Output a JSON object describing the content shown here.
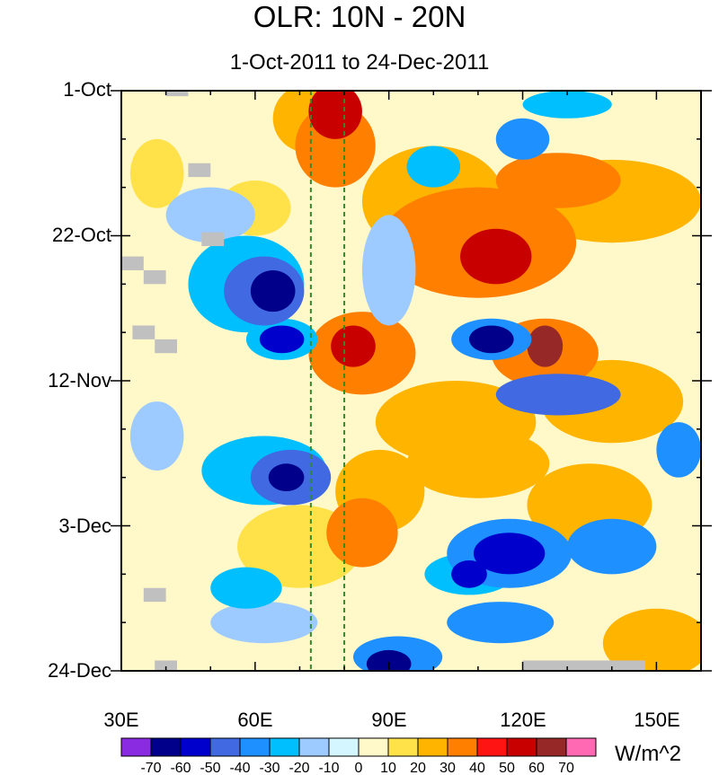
{
  "chart_data": {
    "type": "heatmap",
    "title": "OLR: 10N - 20N",
    "subtitle": "1-Oct-2011 to 24-Dec-2011",
    "x_tick_labels": [
      "30E",
      "60E",
      "90E",
      "120E",
      "150E"
    ],
    "x_ticks": [
      30,
      60,
      90,
      120,
      150
    ],
    "xlim": [
      30,
      160
    ],
    "y_tick_labels": [
      "1-Oct",
      "22-Oct",
      "12-Nov",
      "3-Dec",
      "24-Dec"
    ],
    "y_ticks": [
      0,
      21,
      42,
      63,
      84
    ],
    "ylim": [
      0,
      84
    ],
    "y_axis_direction": "time increasing downward",
    "reference_lines_lon": [
      72.5,
      80
    ],
    "reference_line_color": "#2e8b2e",
    "colorbar": {
      "units": "W/m^2",
      "levels": [
        -70,
        -60,
        -50,
        -40,
        -30,
        -20,
        -10,
        0,
        10,
        20,
        30,
        40,
        50,
        60,
        70
      ],
      "level_labels": [
        "-70",
        "-60",
        "-50",
        "-40",
        "-30",
        "-20",
        "-10",
        "0",
        "10",
        "20",
        "30",
        "40",
        "50",
        "60",
        "70"
      ],
      "colors": [
        "#8a2be2",
        "#00008b",
        "#0000cd",
        "#4169e1",
        "#1e90ff",
        "#00bfff",
        "#9ecbff",
        "#d4f6ff",
        "#fff8c8",
        "#ffe24a",
        "#ffb400",
        "#ff7f00",
        "#ff1414",
        "#c80000",
        "#962828",
        "#ff69b4"
      ]
    },
    "features": [
      {
        "lon": 78,
        "day": 3,
        "value": 55,
        "rx": 6,
        "ry": 4
      },
      {
        "lon": 78,
        "day": 8,
        "value": 35,
        "rx": 9,
        "ry": 6
      },
      {
        "lon": 72,
        "day": 4,
        "value": 25,
        "rx": 8,
        "ry": 5
      },
      {
        "lon": 114,
        "day": 24,
        "value": 55,
        "rx": 8,
        "ry": 4
      },
      {
        "lon": 110,
        "day": 22,
        "value": 32,
        "rx": 22,
        "ry": 8
      },
      {
        "lon": 140,
        "day": 16,
        "value": 25,
        "rx": 20,
        "ry": 6
      },
      {
        "lon": 128,
        "day": 13,
        "value": 30,
        "rx": 14,
        "ry": 4
      },
      {
        "lon": 100,
        "day": 16,
        "value": 20,
        "rx": 16,
        "ry": 8
      },
      {
        "lon": 82,
        "day": 37,
        "value": 55,
        "rx": 5,
        "ry": 3
      },
      {
        "lon": 84,
        "day": 38,
        "value": 32,
        "rx": 12,
        "ry": 6
      },
      {
        "lon": 125,
        "day": 37,
        "value": 60,
        "rx": 4,
        "ry": 3
      },
      {
        "lon": 125,
        "day": 38,
        "value": 30,
        "rx": 12,
        "ry": 5
      },
      {
        "lon": 105,
        "day": 48,
        "value": 25,
        "rx": 18,
        "ry": 6
      },
      {
        "lon": 140,
        "day": 45,
        "value": 20,
        "rx": 16,
        "ry": 6
      },
      {
        "lon": 88,
        "day": 58,
        "value": 25,
        "rx": 10,
        "ry": 6
      },
      {
        "lon": 84,
        "day": 64,
        "value": 32,
        "rx": 8,
        "ry": 5
      },
      {
        "lon": 70,
        "day": 66,
        "value": 15,
        "rx": 14,
        "ry": 6
      },
      {
        "lon": 110,
        "day": 54,
        "value": 22,
        "rx": 16,
        "ry": 5
      },
      {
        "lon": 135,
        "day": 60,
        "value": 22,
        "rx": 14,
        "ry": 6
      },
      {
        "lon": 150,
        "day": 80,
        "value": 20,
        "rx": 12,
        "ry": 5
      },
      {
        "lon": 60,
        "day": 17,
        "value": 15,
        "rx": 8,
        "ry": 4
      },
      {
        "lon": 38,
        "day": 12,
        "value": 12,
        "rx": 6,
        "ry": 5
      },
      {
        "lon": 64,
        "day": 29,
        "value": -70,
        "rx": 5,
        "ry": 3
      },
      {
        "lon": 62,
        "day": 29,
        "value": -45,
        "rx": 9,
        "ry": 5
      },
      {
        "lon": 58,
        "day": 28,
        "value": -22,
        "rx": 13,
        "ry": 7
      },
      {
        "lon": 66,
        "day": 36,
        "value": -55,
        "rx": 5,
        "ry": 2
      },
      {
        "lon": 66,
        "day": 36,
        "value": -30,
        "rx": 8,
        "ry": 3
      },
      {
        "lon": 67,
        "day": 56,
        "value": -70,
        "rx": 4,
        "ry": 2
      },
      {
        "lon": 68,
        "day": 56,
        "value": -42,
        "rx": 9,
        "ry": 4
      },
      {
        "lon": 62,
        "day": 55,
        "value": -22,
        "rx": 14,
        "ry": 5
      },
      {
        "lon": 113,
        "day": 36,
        "value": -62,
        "rx": 5,
        "ry": 2
      },
      {
        "lon": 113,
        "day": 36,
        "value": -38,
        "rx": 9,
        "ry": 3
      },
      {
        "lon": 128,
        "day": 44,
        "value": -45,
        "rx": 14,
        "ry": 3
      },
      {
        "lon": 100,
        "day": 11,
        "value": -30,
        "rx": 6,
        "ry": 3
      },
      {
        "lon": 120,
        "day": 7,
        "value": -35,
        "rx": 6,
        "ry": 3
      },
      {
        "lon": 130,
        "day": 2,
        "value": -25,
        "rx": 10,
        "ry": 2
      },
      {
        "lon": 117,
        "day": 67,
        "value": -55,
        "rx": 8,
        "ry": 3
      },
      {
        "lon": 117,
        "day": 67,
        "value": -35,
        "rx": 14,
        "ry": 5
      },
      {
        "lon": 108,
        "day": 70,
        "value": -60,
        "rx": 4,
        "ry": 2
      },
      {
        "lon": 108,
        "day": 70,
        "value": -30,
        "rx": 10,
        "ry": 3
      },
      {
        "lon": 90,
        "day": 83,
        "value": -65,
        "rx": 5,
        "ry": 2
      },
      {
        "lon": 92,
        "day": 82,
        "value": -35,
        "rx": 10,
        "ry": 3
      },
      {
        "lon": 115,
        "day": 77,
        "value": -40,
        "rx": 12,
        "ry": 3
      },
      {
        "lon": 58,
        "day": 72,
        "value": -30,
        "rx": 8,
        "ry": 3
      },
      {
        "lon": 62,
        "day": 77,
        "value": -20,
        "rx": 12,
        "ry": 3
      },
      {
        "lon": 155,
        "day": 52,
        "value": -40,
        "rx": 5,
        "ry": 4
      },
      {
        "lon": 140,
        "day": 66,
        "value": -35,
        "rx": 10,
        "ry": 4
      },
      {
        "lon": 50,
        "day": 18,
        "value": -15,
        "rx": 10,
        "ry": 4
      },
      {
        "lon": 90,
        "day": 26,
        "value": -15,
        "rx": 6,
        "ry": 8
      },
      {
        "lon": 38,
        "day": 50,
        "value": -15,
        "rx": 6,
        "ry": 5
      }
    ],
    "missing_boxes": [
      {
        "lon0": 40,
        "lon1": 45,
        "day0": 0,
        "day1": 0.8
      },
      {
        "lon0": 45,
        "lon1": 50,
        "day0": 10.5,
        "day1": 12.5
      },
      {
        "lon0": 48,
        "lon1": 53,
        "day0": 20.5,
        "day1": 22.5
      },
      {
        "lon0": 30,
        "lon1": 35,
        "day0": 24,
        "day1": 26
      },
      {
        "lon0": 35,
        "lon1": 40,
        "day0": 26,
        "day1": 28
      },
      {
        "lon0": 32.5,
        "lon1": 37.5,
        "day0": 34,
        "day1": 36
      },
      {
        "lon0": 37.5,
        "lon1": 42.5,
        "day0": 36,
        "day1": 38
      },
      {
        "lon0": 35,
        "lon1": 40,
        "day0": 72,
        "day1": 74
      },
      {
        "lon0": 37.5,
        "lon1": 42.5,
        "day0": 82.5,
        "day1": 84
      },
      {
        "lon0": 120,
        "lon1": 147.5,
        "day0": 82.5,
        "day1": 84
      }
    ]
  }
}
